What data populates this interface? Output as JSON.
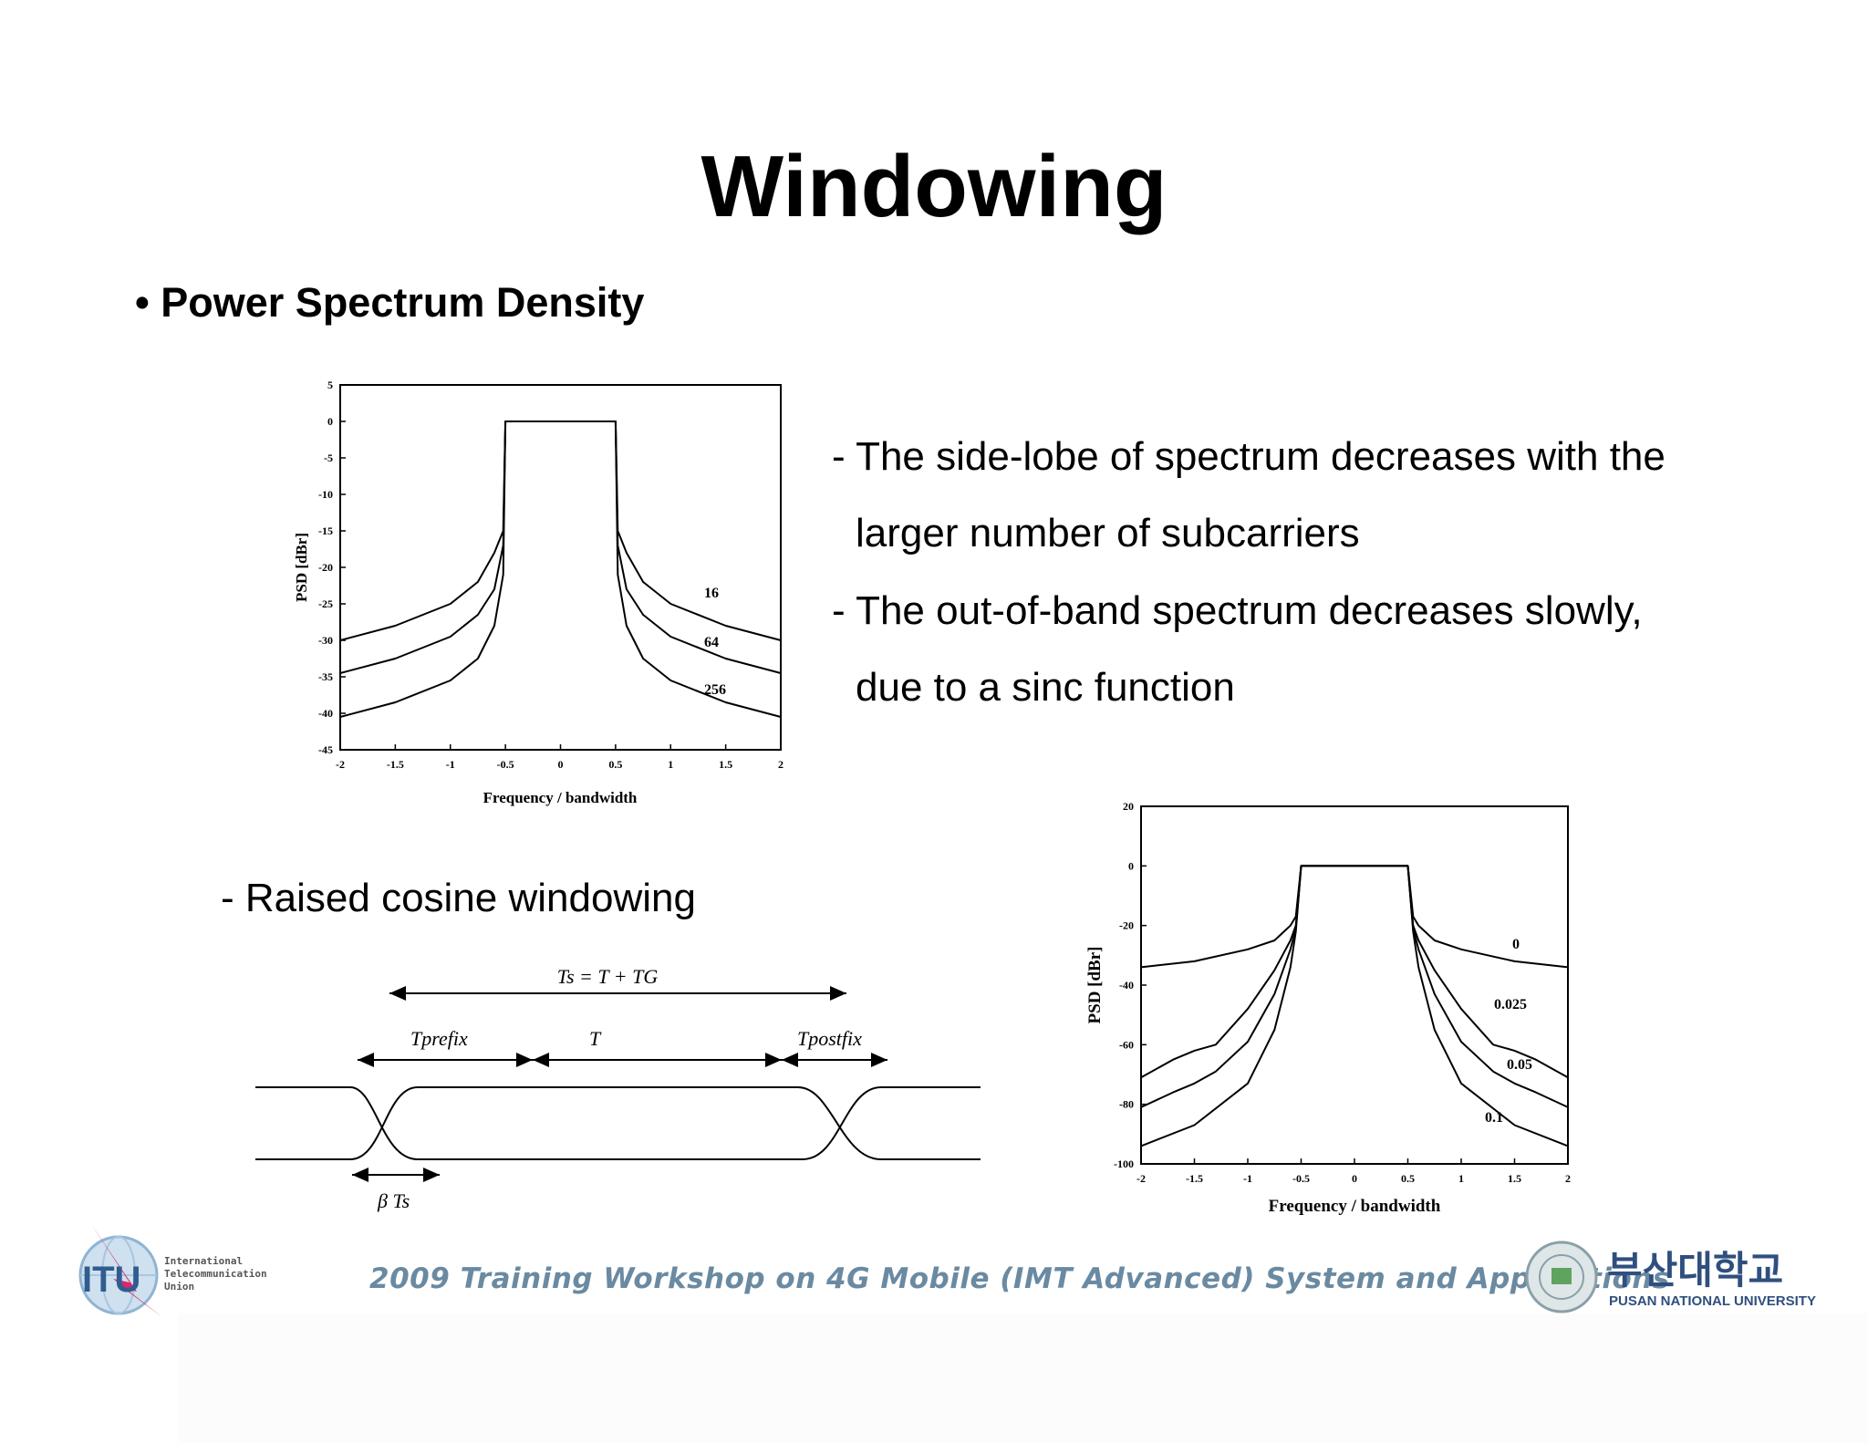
{
  "slide": {
    "title": "Windowing",
    "bullet": "• Power Spectrum Density",
    "notes": [
      "- The side-lobe of spectrum decreases with the",
      "larger number of subcarriers",
      "- The out-of-band spectrum decreases slowly,",
      "due to a sinc function"
    ],
    "raised_cosine_label": "- Raised cosine windowing"
  },
  "timing_diagram": {
    "ts_label": "Ts = T + TG",
    "t_prefix": "Tprefix",
    "t": "T",
    "t_postfix": "Tpostfix",
    "beta_ts": "β Ts"
  },
  "chart_data": [
    {
      "type": "line",
      "title": "",
      "xlabel": "Frequency / bandwidth",
      "ylabel": "PSD [dBr]",
      "xlim": [
        -2,
        2
      ],
      "ylim": [
        -45,
        5
      ],
      "xticks": [
        "-2",
        "-1.5",
        "-1",
        "-0.5",
        "0",
        "0.5",
        "1",
        "1.5",
        "2"
      ],
      "yticks": [
        "5",
        "0",
        "-5",
        "-10",
        "-15",
        "-20",
        "-25",
        "-30",
        "-35",
        "-40",
        "-45"
      ],
      "series": [
        {
          "name": "16",
          "x": [
            -2,
            -1.5,
            -1,
            -0.75,
            -0.6,
            -0.52,
            -0.5,
            0,
            0.5,
            0.52,
            0.6,
            0.75,
            1,
            1.5,
            2
          ],
          "y": [
            -30,
            -28,
            -25,
            -22,
            -18,
            -15,
            0,
            0,
            0,
            -15,
            -18,
            -22,
            -25,
            -28,
            -30
          ]
        },
        {
          "name": "64",
          "x": [
            -2,
            -1.5,
            -1,
            -0.75,
            -0.6,
            -0.52,
            -0.5,
            0,
            0.5,
            0.52,
            0.6,
            0.75,
            1,
            1.5,
            2
          ],
          "y": [
            -34.5,
            -32.5,
            -29.5,
            -26.5,
            -23,
            -17,
            0,
            0,
            0,
            -17,
            -23,
            -26.5,
            -29.5,
            -32.5,
            -34.5
          ]
        },
        {
          "name": "256",
          "x": [
            -2,
            -1.5,
            -1,
            -0.75,
            -0.6,
            -0.52,
            -0.5,
            0,
            0.5,
            0.52,
            0.6,
            0.75,
            1,
            1.5,
            2
          ],
          "y": [
            -40.5,
            -38.5,
            -35.5,
            -32.5,
            -28,
            -21,
            0,
            0,
            0,
            -21,
            -28,
            -32.5,
            -35.5,
            -38.5,
            -40.5
          ]
        }
      ]
    },
    {
      "type": "line",
      "title": "",
      "xlabel": "Frequency / bandwidth",
      "ylabel": "PSD [dBr]",
      "xlim": [
        -2,
        2
      ],
      "ylim": [
        -100,
        20
      ],
      "xticks": [
        "-2",
        "-1.5",
        "-1",
        "-0.5",
        "0",
        "0.5",
        "1",
        "1.5",
        "2"
      ],
      "yticks": [
        "20",
        "0",
        "-20",
        "-40",
        "-60",
        "-80",
        "-100"
      ],
      "series": [
        {
          "name": "0",
          "x": [
            -2,
            -1.5,
            -1,
            -0.75,
            -0.6,
            -0.55,
            -0.5,
            0,
            0.5,
            0.55,
            0.6,
            0.75,
            1,
            1.5,
            2
          ],
          "y": [
            -34,
            -32,
            -28,
            -25,
            -20,
            -17,
            0,
            0,
            0,
            -17,
            -20,
            -25,
            -28,
            -32,
            -34
          ]
        },
        {
          "name": "0.025",
          "x": [
            -2,
            -1.7,
            -1.5,
            -1.3,
            -1,
            -0.75,
            -0.6,
            -0.55,
            -0.5,
            0,
            0.5,
            0.55,
            0.6,
            0.75,
            1,
            1.3,
            1.5,
            1.7,
            2
          ],
          "y": [
            -71,
            -65,
            -62,
            -60,
            -48,
            -35,
            -25,
            -20,
            0,
            0,
            0,
            -20,
            -25,
            -35,
            -48,
            -60,
            -62,
            -65,
            -71
          ]
        },
        {
          "name": "0.05",
          "x": [
            -2,
            -1.7,
            -1.5,
            -1.3,
            -1,
            -0.75,
            -0.6,
            -0.55,
            -0.5,
            0,
            0.5,
            0.55,
            0.6,
            0.75,
            1,
            1.3,
            1.5,
            1.7,
            2
          ],
          "y": [
            -81,
            -76,
            -73,
            -69,
            -59,
            -43,
            -28,
            -21,
            0,
            0,
            0,
            -21,
            -28,
            -43,
            -59,
            -69,
            -73,
            -76,
            -81
          ]
        },
        {
          "name": "0.1",
          "x": [
            -2,
            -1.5,
            -1,
            -0.75,
            -0.6,
            -0.55,
            -0.5,
            0,
            0.5,
            0.55,
            0.6,
            0.75,
            1,
            1.5,
            2
          ],
          "y": [
            -94,
            -87,
            -73,
            -55,
            -34,
            -22,
            0,
            0,
            0,
            -22,
            -34,
            -55,
            -73,
            -87,
            -94
          ]
        }
      ]
    }
  ],
  "footer": {
    "itu_logo_text": "ITU",
    "itu_org_name": [
      "International",
      "Telecommunication",
      "Union"
    ],
    "workshop_text": "2009 Training Workshop on 4G Mobile (IMT Advanced) System and Applications",
    "university_korean": "부산대학교",
    "university_english": "PUSAN NATIONAL UNIVERSITY",
    "brand_color": "#6a8aa2"
  }
}
